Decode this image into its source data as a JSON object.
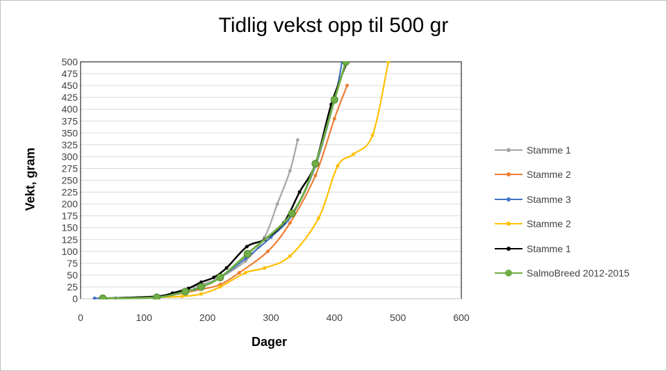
{
  "chart_data": {
    "type": "line",
    "title": "Tidlig vekst opp til 500  gr",
    "xlabel": "Dager",
    "ylabel": "Vekt, gram",
    "xlim": [
      0,
      600
    ],
    "ylim": [
      0,
      500
    ],
    "xticks": [
      "0",
      "100",
      "200",
      "300",
      "400",
      "500",
      "600"
    ],
    "yticks": [
      "0",
      "25",
      "50",
      "75",
      "100",
      "125",
      "150",
      "175",
      "200",
      "225",
      "250",
      "275",
      "300",
      "325",
      "350",
      "375",
      "400",
      "425",
      "450",
      "475",
      "500"
    ],
    "grid": "horizontal",
    "legend_position": "right",
    "series": [
      {
        "name": "Stamme 1",
        "color": "#a5a5a5",
        "marker": "small",
        "x": [
          35,
          120,
          190,
          220,
          260,
          290,
          310,
          330,
          342
        ],
        "y": [
          1,
          5,
          30,
          45,
          80,
          130,
          200,
          270,
          335
        ]
      },
      {
        "name": "Stamme 2",
        "color": "#ed7d31",
        "marker": "small",
        "x": [
          35,
          120,
          190,
          220,
          250,
          295,
          330,
          370,
          400,
          420
        ],
        "y": [
          1,
          3,
          20,
          30,
          55,
          100,
          160,
          260,
          380,
          450
        ]
      },
      {
        "name": "Stamme 3",
        "color": "#4472c4",
        "marker": "small",
        "x": [
          22,
          55,
          120,
          180,
          220,
          260,
          300,
          335,
          370,
          400,
          412
        ],
        "y": [
          1,
          1,
          5,
          20,
          45,
          85,
          130,
          180,
          280,
          420,
          500
        ]
      },
      {
        "name": "Stamme 2",
        "color": "#ffc000",
        "marker": "small",
        "x": [
          35,
          120,
          160,
          190,
          220,
          260,
          290,
          330,
          375,
          405,
          430,
          460,
          485
        ],
        "y": [
          1,
          3,
          5,
          10,
          25,
          55,
          65,
          90,
          170,
          280,
          305,
          345,
          500
        ]
      },
      {
        "name": "Stamme 1",
        "color": "#000000",
        "marker": "small",
        "x": [
          35,
          120,
          145,
          170,
          190,
          210,
          230,
          262,
          290,
          320,
          345,
          370,
          395,
          420
        ],
        "y": [
          1,
          5,
          12,
          22,
          35,
          45,
          65,
          110,
          125,
          160,
          225,
          285,
          410,
          500
        ]
      },
      {
        "name": "SalmoBreed 2012-2015",
        "color": "#70ad47",
        "marker": "large",
        "x": [
          35,
          120,
          165,
          190,
          220,
          263,
          333,
          370,
          400,
          418
        ],
        "y": [
          1,
          3,
          15,
          25,
          45,
          95,
          180,
          285,
          420,
          500
        ]
      }
    ]
  }
}
